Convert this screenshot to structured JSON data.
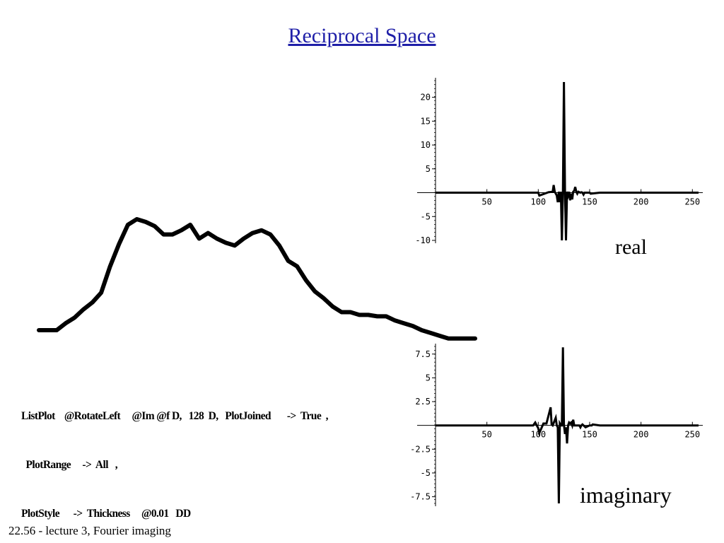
{
  "slide": {
    "title": "Reciprocal Space",
    "code_lines": [
      "ListPlot    @RotateLeft     @Im @f D,   128  D,   PlotJoined       ->  True  ,",
      "  PlotRange     ->  All   ,",
      "PlotStyle      ->  Thickness     @0.01   DD"
    ],
    "label_real": "real",
    "label_imaginary": "imaginary",
    "footer": "22.56 - lecture 3, Fourier imaging",
    "title_color": "#1f1fa8"
  },
  "chart_data": [
    {
      "type": "line",
      "name": "profile",
      "x": [
        1,
        2,
        3,
        4,
        5,
        6,
        7,
        8,
        9,
        10,
        11,
        12,
        13,
        14,
        15,
        16,
        17,
        18,
        19,
        20,
        21,
        22,
        23,
        24,
        25,
        26,
        27,
        28,
        29,
        30,
        31,
        32,
        33,
        34,
        35,
        36,
        37,
        38,
        39,
        40,
        41,
        42,
        43,
        44,
        45,
        46,
        47,
        48,
        49,
        50
      ],
      "values": [
        0,
        0,
        0,
        0.05,
        0.09,
        0.15,
        0.2,
        0.27,
        0.46,
        0.62,
        0.76,
        0.8,
        0.78,
        0.75,
        0.69,
        0.69,
        0.72,
        0.76,
        0.66,
        0.7,
        0.66,
        0.63,
        0.61,
        0.66,
        0.7,
        0.72,
        0.69,
        0.61,
        0.5,
        0.46,
        0.36,
        0.28,
        0.23,
        0.17,
        0.13,
        0.13,
        0.11,
        0.11,
        0.1,
        0.1,
        0.07,
        0.05,
        0.03,
        0.0,
        -0.02,
        -0.04,
        -0.06,
        -0.06,
        -0.06,
        -0.06
      ],
      "axes": false
    },
    {
      "type": "line",
      "name": "real",
      "xlim": [
        0,
        256
      ],
      "ylim": [
        -10,
        23.5
      ],
      "xticks": [
        50,
        100,
        150,
        200,
        250
      ],
      "yticks": [
        -10,
        -5,
        5,
        10,
        15,
        20
      ],
      "x": [
        0,
        100,
        101,
        110,
        114,
        115,
        116,
        118,
        119,
        120,
        121,
        122,
        123,
        124,
        125,
        126,
        127,
        128,
        129,
        130,
        131,
        132,
        133,
        134,
        135,
        136,
        137,
        138,
        139,
        140,
        141,
        142,
        143,
        144,
        145,
        150,
        151,
        160,
        256
      ],
      "values": [
        0,
        0,
        -0.6,
        0.1,
        0.2,
        1.6,
        0.2,
        -0.6,
        -2,
        0.2,
        -2,
        0.2,
        -10,
        0.2,
        23.2,
        0.2,
        -10,
        0.2,
        -0.6,
        0.2,
        -1.6,
        -0.2,
        -1.4,
        0.2,
        0.4,
        1.2,
        0.2,
        -0.2,
        0.2,
        0.1,
        0,
        0.1,
        0,
        -0.4,
        0,
        0,
        -0.2,
        0,
        0
      ]
    },
    {
      "type": "line",
      "name": "imaginary",
      "xlim": [
        0,
        256
      ],
      "ylim": [
        -8.2,
        8.3
      ],
      "xticks": [
        50,
        100,
        150,
        200,
        250
      ],
      "yticks": [
        -7.5,
        -5,
        -2.5,
        2.5,
        5,
        7.5
      ],
      "x": [
        0,
        95,
        97,
        100,
        101,
        105,
        108,
        112,
        113,
        114,
        117,
        118,
        119,
        120,
        121,
        122,
        123,
        124,
        125,
        126,
        127,
        128,
        129,
        130,
        131,
        132,
        133,
        134,
        135,
        140,
        141,
        142,
        143,
        146,
        150,
        152,
        153,
        160,
        180,
        256
      ],
      "values": [
        0,
        0,
        0.3,
        -0.3,
        -0.8,
        0.2,
        0.2,
        1.9,
        0.1,
        0,
        0.8,
        0,
        -0.2,
        -8.2,
        0.2,
        0,
        0,
        8.2,
        0.1,
        -0.9,
        -0.2,
        -1.9,
        0,
        0.3,
        0.2,
        0.3,
        0,
        0.6,
        0,
        0,
        -0.2,
        0,
        0.1,
        -0.2,
        0,
        0,
        0.1,
        0,
        0,
        0
      ]
    }
  ]
}
